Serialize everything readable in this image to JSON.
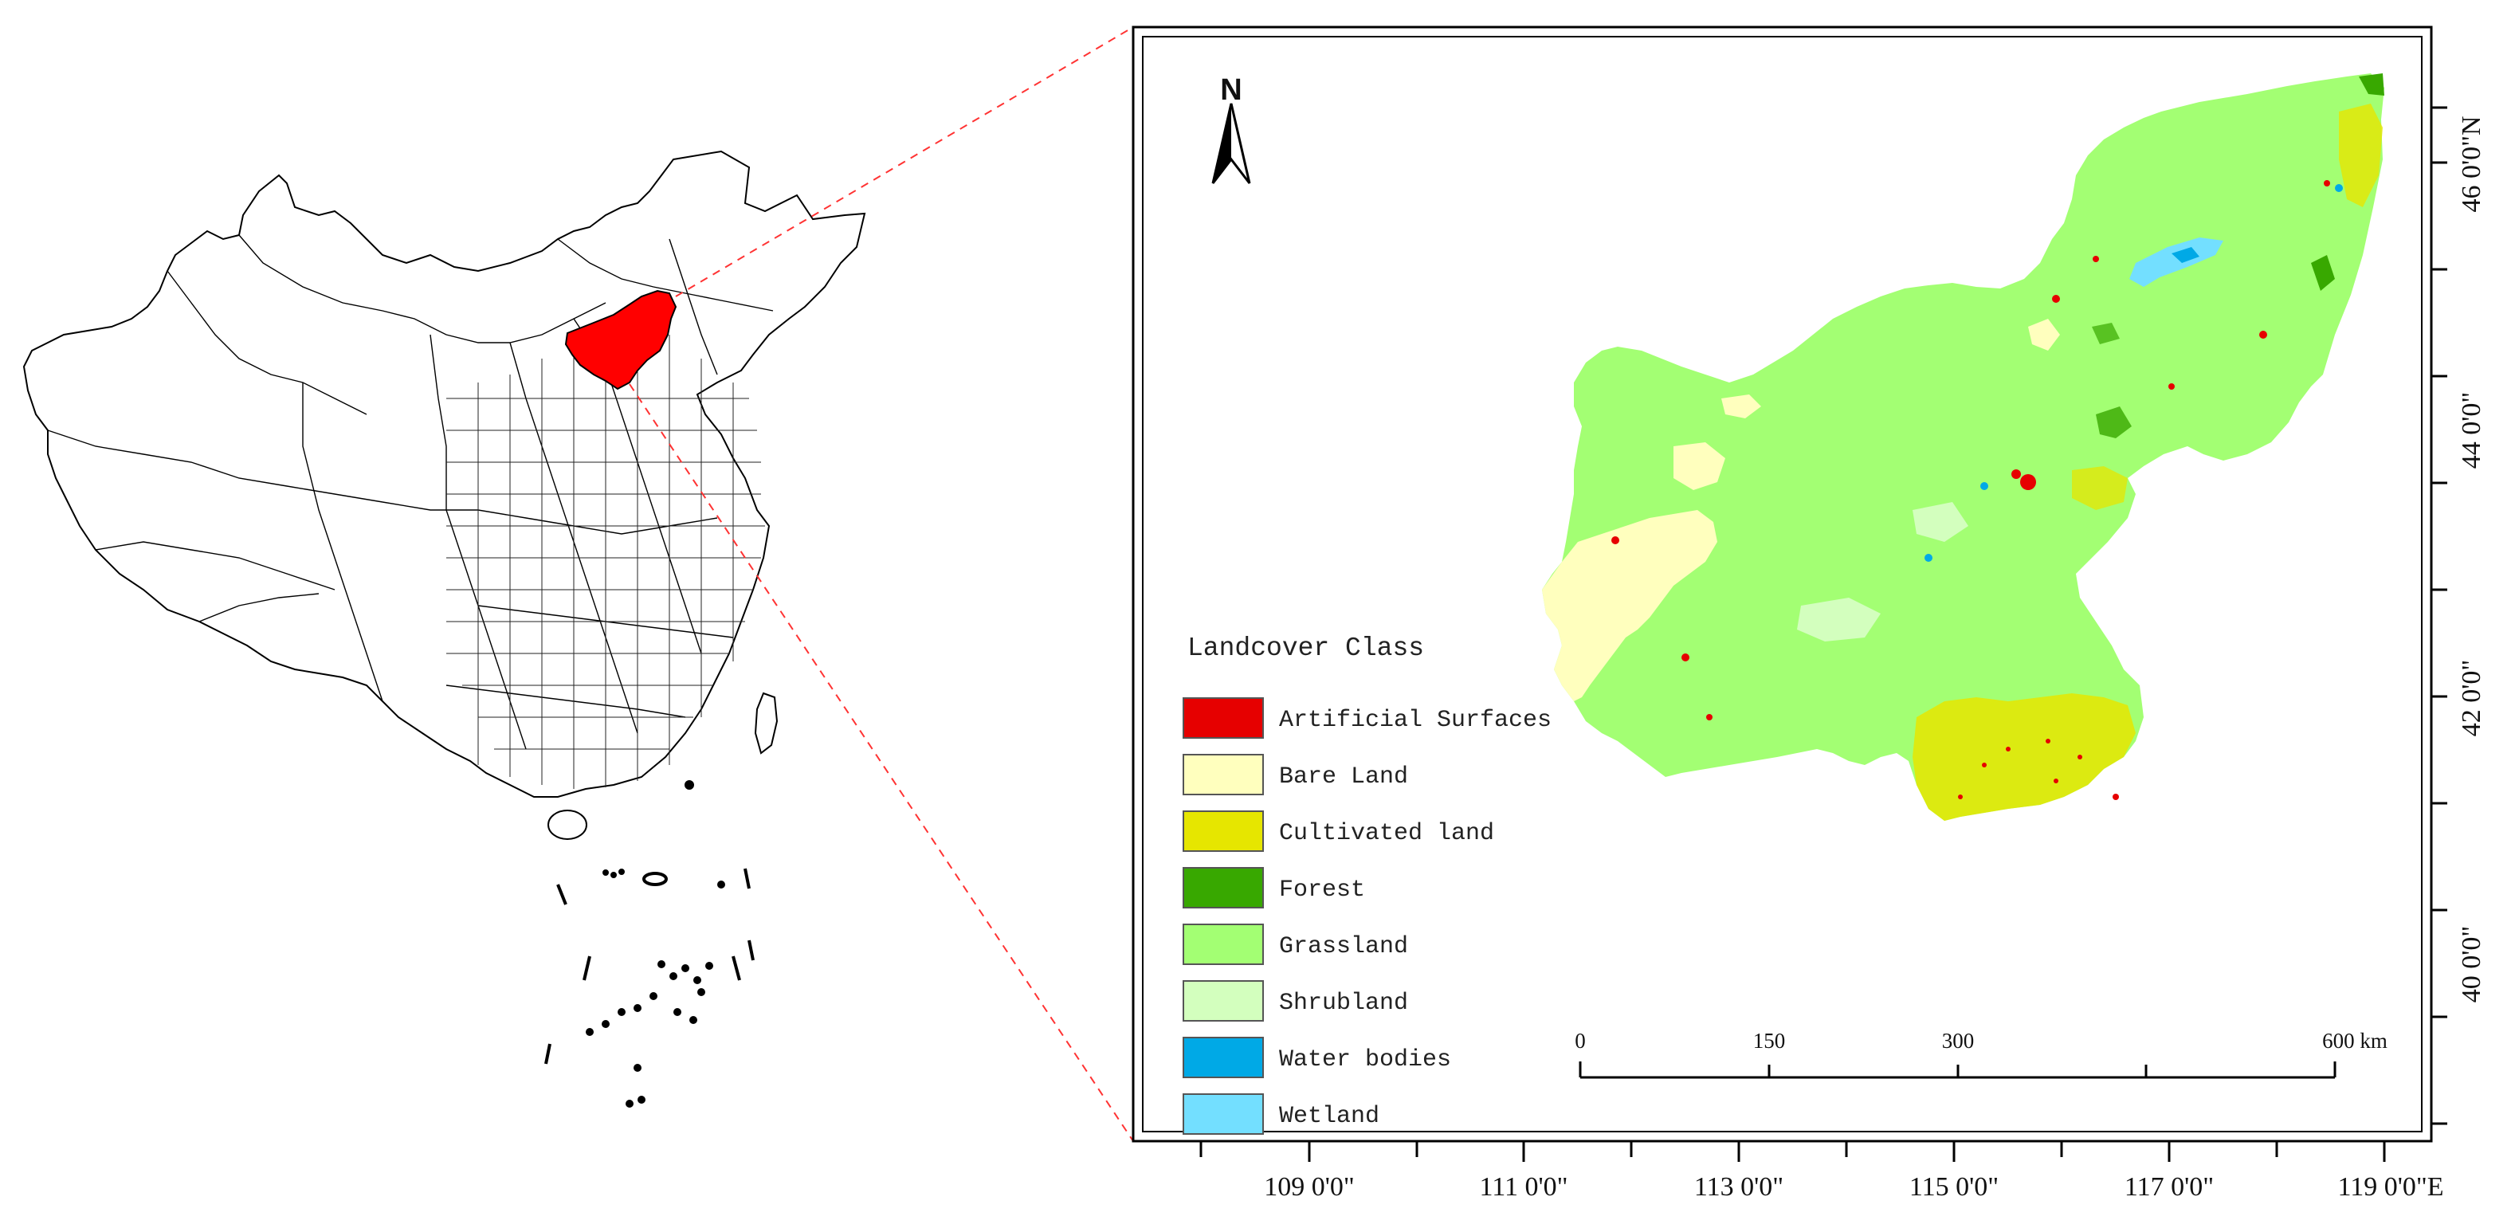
{
  "map": {
    "north_arrow_label": "N",
    "x_axis_labels": [
      "109 0'0\"",
      "111 0'0\"",
      "113 0'0\"",
      "115 0'0\"",
      "117 0'0\"",
      "119 0'0\"E"
    ],
    "y_axis_labels": [
      "46 0'0\"N",
      "44 0'0\"",
      "42 0'0\"",
      "40 0'0\""
    ],
    "scale_bar": {
      "labels": [
        "0",
        "150",
        "300",
        "600 km"
      ]
    }
  },
  "legend": {
    "title": "Landcover Class",
    "items": [
      {
        "label": "Artificial Surfaces",
        "color": "#e60000"
      },
      {
        "label": "Bare Land",
        "color": "#ffffbe"
      },
      {
        "label": "Cultivated land",
        "color": "#e6e600"
      },
      {
        "label": "Forest",
        "color": "#38a800"
      },
      {
        "label": "Grassland",
        "color": "#a3ff73"
      },
      {
        "label": "Shrubland",
        "color": "#d3ffbe"
      },
      {
        "label": "Water bodies",
        "color": "#00a9e6"
      },
      {
        "label": "Wetland",
        "color": "#73dfff"
      }
    ]
  },
  "colors": {
    "study_area_highlight": "#ff0000",
    "connector_line": "#ff3333",
    "region_outline": "#000000"
  }
}
